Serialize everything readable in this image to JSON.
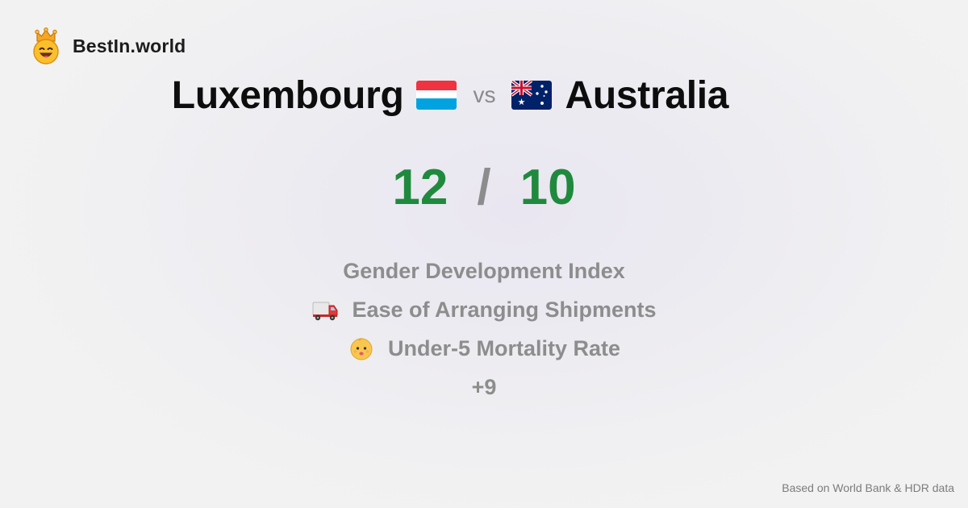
{
  "brand": {
    "name": "BestIn.world",
    "logo_icon": "crown-smiley-icon"
  },
  "matchup": {
    "left_country": "Luxembourg",
    "left_flag_icon": "luxembourg-flag-icon",
    "vs_label": "vs",
    "right_country": "Australia",
    "right_flag_icon": "australia-flag-icon"
  },
  "score": {
    "left": "12",
    "separator": "/",
    "right": "10",
    "color": "#1f8a3d"
  },
  "metrics": [
    {
      "label": "Gender Development Index",
      "icon": ""
    },
    {
      "label": "Ease of Arranging Shipments",
      "icon": "delivery-truck-icon"
    },
    {
      "label": "Under-5 Mortality Rate",
      "icon": "baby-face-icon"
    }
  ],
  "more_label": "+9",
  "footer": {
    "source": "Based on World Bank & HDR data"
  }
}
